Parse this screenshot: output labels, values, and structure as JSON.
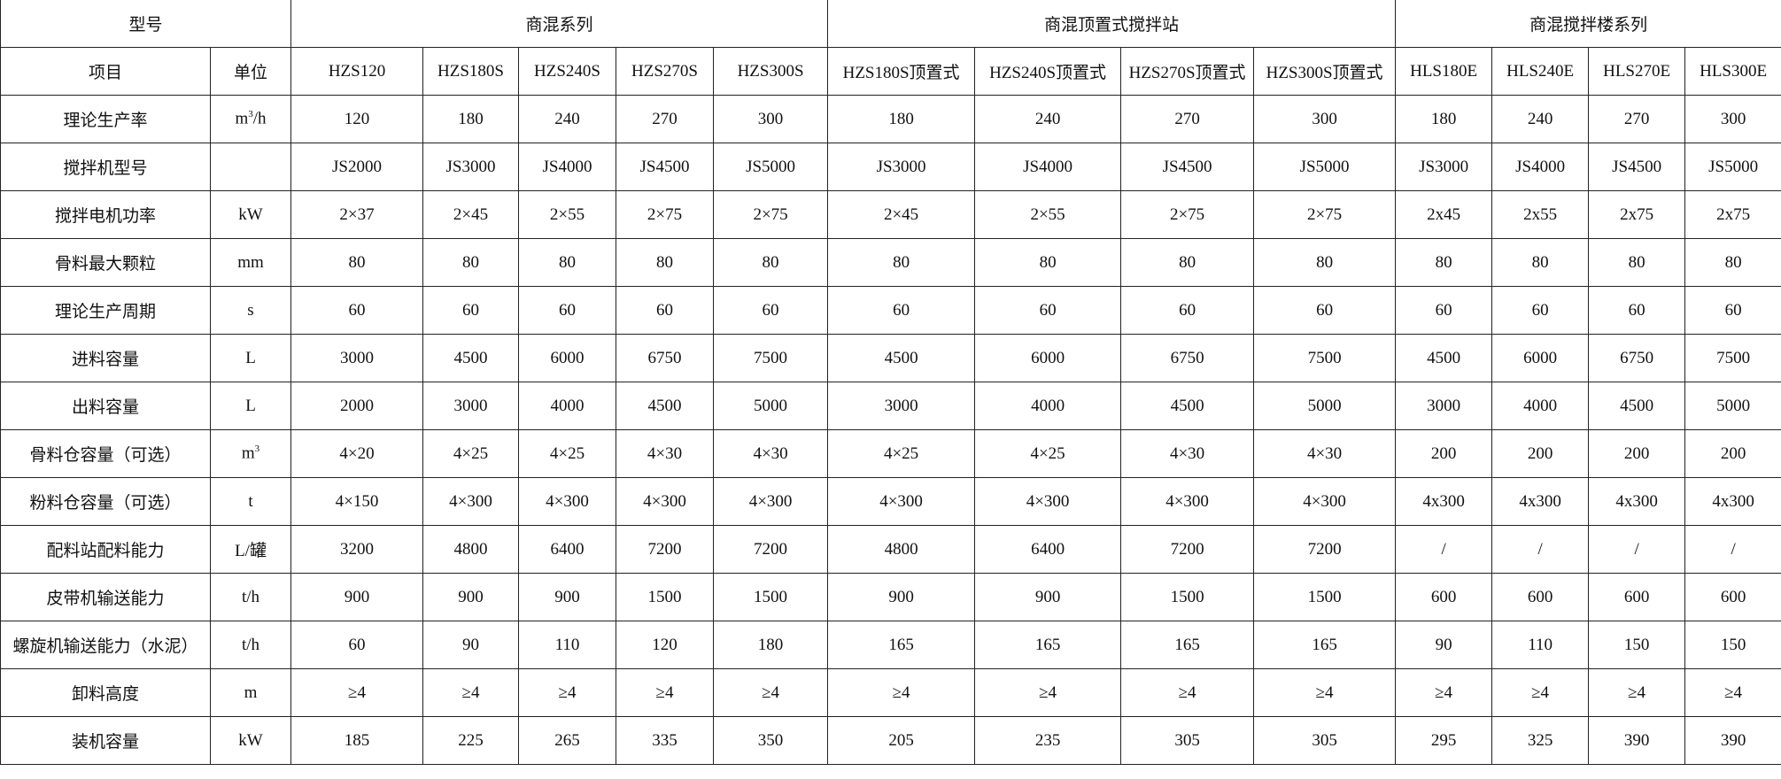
{
  "header": {
    "model_label": "型号",
    "groups": [
      "商混系列",
      "商混顶置式搅拌站",
      "商混搅拌楼系列"
    ]
  },
  "subheader": {
    "item_label": "项目",
    "unit_label": "单位",
    "models": [
      "HZS120",
      "HZS180S",
      "HZS240S",
      "HZS270S",
      "HZS300S",
      "HZS180S顶置式",
      "HZS240S顶置式",
      "HZS270S顶置式",
      "HZS300S顶置式",
      "HLS180E",
      "HLS240E",
      "HLS270E",
      "HLS300E"
    ]
  },
  "rows": [
    {
      "item": "理论生产率",
      "unit": "m",
      "unit_sup": "3",
      "unit_suffix": "/h",
      "values": [
        "120",
        "180",
        "240",
        "270",
        "300",
        "180",
        "240",
        "270",
        "300",
        "180",
        "240",
        "270",
        "300"
      ]
    },
    {
      "item": "搅拌机型号",
      "unit": "",
      "values": [
        "JS2000",
        "JS3000",
        "JS4000",
        "JS4500",
        "JS5000",
        "JS3000",
        "JS4000",
        "JS4500",
        "JS5000",
        "JS3000",
        "JS4000",
        "JS4500",
        "JS5000"
      ]
    },
    {
      "item": "搅拌电机功率",
      "unit": "kW",
      "values": [
        "2×37",
        "2×45",
        "2×55",
        "2×75",
        "2×75",
        "2×45",
        "2×55",
        "2×75",
        "2×75",
        "2x45",
        "2x55",
        "2x75",
        "2x75"
      ]
    },
    {
      "item": "骨料最大颗粒",
      "unit": "mm",
      "values": [
        "80",
        "80",
        "80",
        "80",
        "80",
        "80",
        "80",
        "80",
        "80",
        "80",
        "80",
        "80",
        "80"
      ]
    },
    {
      "item": "理论生产周期",
      "unit": "s",
      "values": [
        "60",
        "60",
        "60",
        "60",
        "60",
        "60",
        "60",
        "60",
        "60",
        "60",
        "60",
        "60",
        "60"
      ]
    },
    {
      "item": "进料容量",
      "unit": "L",
      "values": [
        "3000",
        "4500",
        "6000",
        "6750",
        "7500",
        "4500",
        "6000",
        "6750",
        "7500",
        "4500",
        "6000",
        "6750",
        "7500"
      ]
    },
    {
      "item": "出料容量",
      "unit": "L",
      "values": [
        "2000",
        "3000",
        "4000",
        "4500",
        "5000",
        "3000",
        "4000",
        "4500",
        "5000",
        "3000",
        "4000",
        "4500",
        "5000"
      ]
    },
    {
      "item": "骨料仓容量（可选）",
      "unit": "m",
      "unit_sup": "3",
      "unit_suffix": "",
      "values": [
        "4×20",
        "4×25",
        "4×25",
        "4×30",
        "4×30",
        "4×25",
        "4×25",
        "4×30",
        "4×30",
        "200",
        "200",
        "200",
        "200"
      ]
    },
    {
      "item": "粉料仓容量（可选）",
      "unit": "t",
      "values": [
        "4×150",
        "4×300",
        "4×300",
        "4×300",
        "4×300",
        "4×300",
        "4×300",
        "4×300",
        "4×300",
        "4x300",
        "4x300",
        "4x300",
        "4x300"
      ]
    },
    {
      "item": "配料站配料能力",
      "unit": "L/罐",
      "values": [
        "3200",
        "4800",
        "6400",
        "7200",
        "7200",
        "4800",
        "6400",
        "7200",
        "7200",
        "/",
        "/",
        "/",
        "/"
      ]
    },
    {
      "item": "皮带机输送能力",
      "unit": "t/h",
      "values": [
        "900",
        "900",
        "900",
        "1500",
        "1500",
        "900",
        "900",
        "1500",
        "1500",
        "600",
        "600",
        "600",
        "600"
      ]
    },
    {
      "item": "螺旋机输送能力（水泥）",
      "unit": "t/h",
      "values": [
        "60",
        "90",
        "110",
        "120",
        "180",
        "165",
        "165",
        "165",
        "165",
        "90",
        "110",
        "150",
        "150"
      ]
    },
    {
      "item": "卸料高度",
      "unit": "m",
      "values": [
        "≥4",
        "≥4",
        "≥4",
        "≥4",
        "≥4",
        "≥4",
        "≥4",
        "≥4",
        "≥4",
        "≥4",
        "≥4",
        "≥4",
        "≥4"
      ]
    },
    {
      "item": "装机容量",
      "unit": "kW",
      "values": [
        "185",
        "225",
        "265",
        "335",
        "350",
        "205",
        "235",
        "305",
        "305",
        "295",
        "325",
        "390",
        "390"
      ]
    }
  ]
}
